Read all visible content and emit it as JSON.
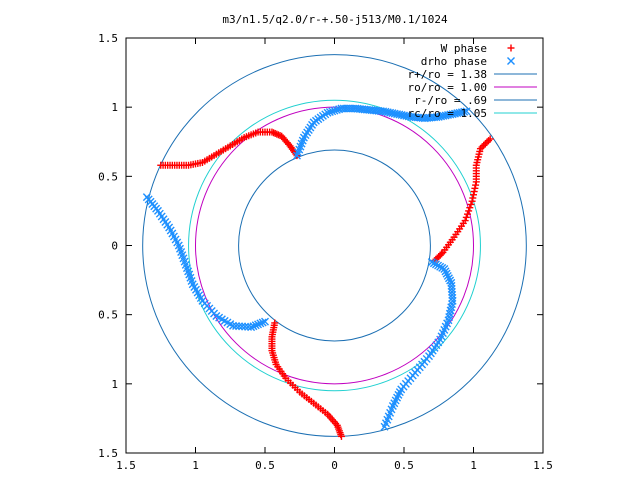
{
  "chart_data": {
    "type": "scatter",
    "title": "m3/n1.5/q2.0/r-+.50-j513/M0.1/1024",
    "xlabel": "",
    "ylabel": "",
    "xlim": [
      -1.5,
      1.5
    ],
    "ylim": [
      -1.5,
      1.5
    ],
    "x_ticks": [
      {
        "value": -1.5,
        "label": "1.5"
      },
      {
        "value": -1.0,
        "label": "1"
      },
      {
        "value": -0.5,
        "label": "0.5"
      },
      {
        "value": 0.0,
        "label": "0"
      },
      {
        "value": 0.5,
        "label": "0.5"
      },
      {
        "value": 1.0,
        "label": "1"
      },
      {
        "value": 1.5,
        "label": "1.5"
      }
    ],
    "y_ticks": [
      {
        "value": 1.5,
        "label": "1.5"
      },
      {
        "value": 1.0,
        "label": "1"
      },
      {
        "value": 0.5,
        "label": "0.5"
      },
      {
        "value": 0.0,
        "label": "0"
      },
      {
        "value": -0.5,
        "label": "0.5"
      },
      {
        "value": -1.0,
        "label": "1"
      },
      {
        "value": -1.5,
        "label": "1.5"
      }
    ],
    "grid": false,
    "legend_position": "top-right",
    "series": [
      {
        "name": "W phase",
        "marker": "+",
        "color": "#ff0000",
        "points": [
          [
            -1.25,
            0.58
          ],
          [
            -1.15,
            0.58
          ],
          [
            -1.05,
            0.58
          ],
          [
            -0.95,
            0.6
          ],
          [
            -0.85,
            0.66
          ],
          [
            -0.75,
            0.72
          ],
          [
            -0.65,
            0.78
          ],
          [
            -0.55,
            0.82
          ],
          [
            -0.45,
            0.82
          ],
          [
            -0.38,
            0.79
          ],
          [
            -0.32,
            0.72
          ],
          [
            -0.27,
            0.65
          ],
          [
            0.05,
            -1.38
          ],
          [
            0.02,
            -1.3
          ],
          [
            -0.05,
            -1.22
          ],
          [
            -0.15,
            -1.14
          ],
          [
            -0.25,
            -1.06
          ],
          [
            -0.35,
            -0.96
          ],
          [
            -0.42,
            -0.86
          ],
          [
            -0.45,
            -0.76
          ],
          [
            -0.45,
            -0.66
          ],
          [
            -0.43,
            -0.56
          ],
          [
            1.12,
            0.77
          ],
          [
            1.05,
            0.7
          ],
          [
            1.02,
            0.58
          ],
          [
            1.02,
            0.46
          ],
          [
            0.99,
            0.32
          ],
          [
            0.94,
            0.18
          ],
          [
            0.86,
            0.06
          ],
          [
            0.78,
            -0.05
          ],
          [
            0.72,
            -0.11
          ]
        ]
      },
      {
        "name": "drho phase",
        "marker": "x",
        "color": "#1e90ff",
        "points": [
          [
            -0.27,
            0.65
          ],
          [
            -0.22,
            0.78
          ],
          [
            -0.15,
            0.89
          ],
          [
            -0.05,
            0.96
          ],
          [
            0.05,
            0.99
          ],
          [
            0.15,
            0.99
          ],
          [
            0.25,
            0.98
          ],
          [
            0.35,
            0.97
          ],
          [
            0.45,
            0.95
          ],
          [
            0.55,
            0.93
          ],
          [
            0.65,
            0.92
          ],
          [
            0.75,
            0.93
          ],
          [
            0.85,
            0.95
          ],
          [
            0.95,
            0.97
          ],
          [
            -1.35,
            0.35
          ],
          [
            -1.27,
            0.25
          ],
          [
            -1.19,
            0.13
          ],
          [
            -1.12,
            0.0
          ],
          [
            -1.07,
            -0.14
          ],
          [
            -1.02,
            -0.28
          ],
          [
            -0.95,
            -0.4
          ],
          [
            -0.85,
            -0.51
          ],
          [
            -0.73,
            -0.58
          ],
          [
            -0.6,
            -0.59
          ],
          [
            -0.5,
            -0.55
          ],
          [
            0.7,
            -0.12
          ],
          [
            0.79,
            -0.17
          ],
          [
            0.84,
            -0.27
          ],
          [
            0.85,
            -0.4
          ],
          [
            0.82,
            -0.54
          ],
          [
            0.76,
            -0.68
          ],
          [
            0.68,
            -0.8
          ],
          [
            0.58,
            -0.92
          ],
          [
            0.48,
            -1.04
          ],
          [
            0.42,
            -1.16
          ],
          [
            0.36,
            -1.31
          ]
        ]
      },
      {
        "name": "r+/ro = 1.38",
        "kind": "circle",
        "radius": 1.38,
        "color": "#1b6fb3"
      },
      {
        "name": "ro/ro = 1.00",
        "kind": "circle",
        "radius": 1.0,
        "color": "#c000c0"
      },
      {
        "name": "r-/ro = .69",
        "kind": "circle",
        "radius": 0.69,
        "color": "#1b6fb3"
      },
      {
        "name": "rc/ro = 1.05",
        "kind": "circle",
        "radius": 1.05,
        "color": "#20d0d0"
      }
    ]
  }
}
